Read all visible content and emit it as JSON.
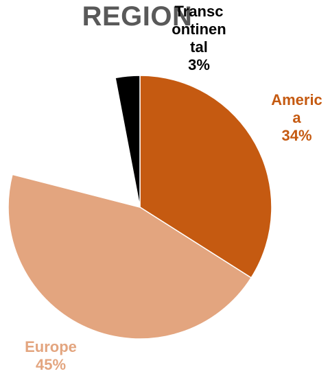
{
  "chart_data": {
    "type": "pie",
    "title": "REGION",
    "slices": [
      {
        "name": "America",
        "value": 34,
        "color": "#c55a11",
        "label_lines": [
          "Americ",
          "a",
          "34%"
        ]
      },
      {
        "name": "Europe",
        "value": 45,
        "color": "#e3a57f",
        "label_lines": [
          "Europe",
          "45%"
        ]
      },
      {
        "name": "",
        "value": 18,
        "color": "#ffffff",
        "label_lines": []
      },
      {
        "name": "Transcontinental",
        "value": 3,
        "color": "#000000",
        "label_lines": [
          "Transc",
          "ontinen",
          "tal",
          "3%"
        ]
      }
    ],
    "start": "12 o'clock",
    "direction": "clockwise"
  }
}
